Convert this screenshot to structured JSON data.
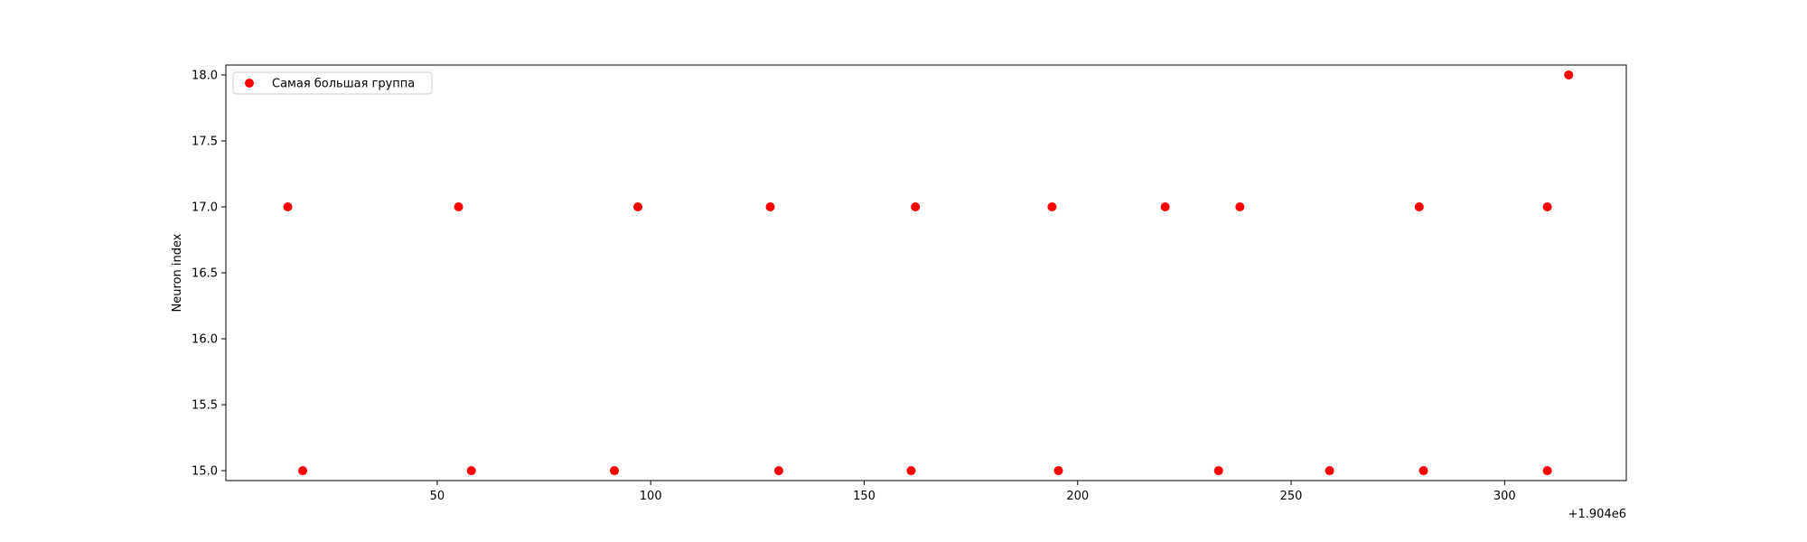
{
  "chart_data": {
    "type": "scatter",
    "ylabel": "Neuron index",
    "xlabel": "",
    "x_offset_label": "+1.904e6",
    "xlim": [
      0.5,
      328.5
    ],
    "ylim": [
      14.925,
      18.075
    ],
    "x_ticks": [
      50,
      100,
      150,
      200,
      250,
      300
    ],
    "x_tick_labels": [
      "50",
      "100",
      "150",
      "200",
      "250",
      "300"
    ],
    "y_ticks": [
      15.0,
      15.5,
      16.0,
      16.5,
      17.0,
      17.5,
      18.0
    ],
    "y_tick_labels": [
      "15.0",
      "15.5",
      "16.0",
      "16.5",
      "17.0",
      "17.5",
      "18.0"
    ],
    "grid": false,
    "legend_position": "top-left",
    "series": [
      {
        "name": "Самая большая группа",
        "color": "#ff0000",
        "points": [
          {
            "x": 15,
            "y": 17
          },
          {
            "x": 18.5,
            "y": 15
          },
          {
            "x": 55,
            "y": 17
          },
          {
            "x": 58,
            "y": 15
          },
          {
            "x": 91.5,
            "y": 15
          },
          {
            "x": 97,
            "y": 17
          },
          {
            "x": 128,
            "y": 17
          },
          {
            "x": 130,
            "y": 15
          },
          {
            "x": 161,
            "y": 15
          },
          {
            "x": 162,
            "y": 17
          },
          {
            "x": 194,
            "y": 17
          },
          {
            "x": 195.5,
            "y": 15
          },
          {
            "x": 220.5,
            "y": 17
          },
          {
            "x": 233,
            "y": 15
          },
          {
            "x": 238,
            "y": 17
          },
          {
            "x": 259,
            "y": 15
          },
          {
            "x": 280,
            "y": 17
          },
          {
            "x": 281,
            "y": 15
          },
          {
            "x": 310,
            "y": 17
          },
          {
            "x": 310,
            "y": 15
          },
          {
            "x": 315,
            "y": 18
          }
        ]
      }
    ]
  }
}
